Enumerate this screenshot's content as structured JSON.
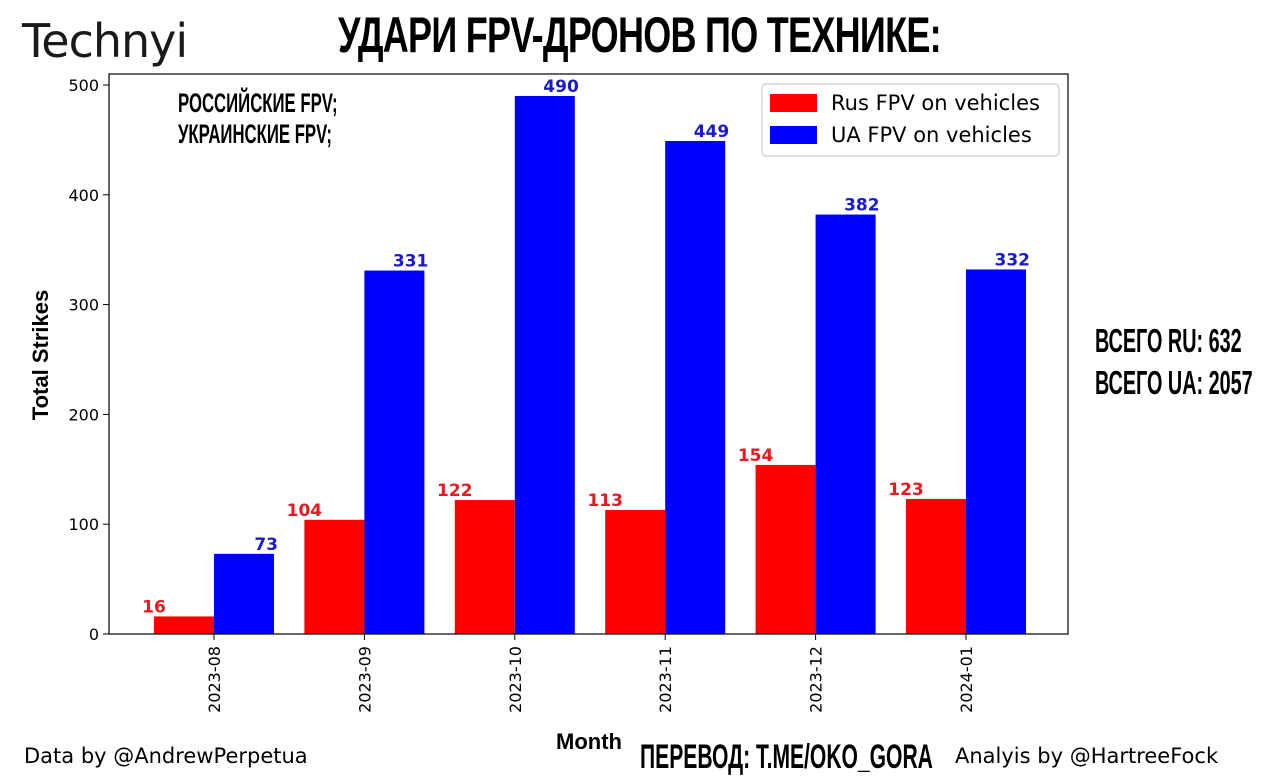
{
  "header": {
    "logo": "Technyi",
    "title": "УДАРИ FPV-ДРОНОВ ПО ТЕХНИКЕ:"
  },
  "annotations": {
    "line1": "РОССИЙСКИЕ FPV;",
    "line2": "УКРАИНСКИЕ FPV;"
  },
  "totals": {
    "ru": "ВСЕГО RU: 632",
    "ua": "ВСЕГО UA: 2057"
  },
  "footer": {
    "data_by": "Data by @AndrewPerpetua",
    "translation": "ПЕРЕВОД: T.ME/OKO_GORA",
    "analysis_by": "Analyis by @HartreeFock"
  },
  "colors": {
    "ru": "#ff0000",
    "ua": "#0000ff",
    "ru_label": "#e8191f",
    "ua_label": "#1a1acc"
  },
  "chart_data": {
    "type": "bar",
    "xlabel": "Month",
    "ylabel": "Total Strikes",
    "ylim": [
      0,
      510
    ],
    "yticks": [
      0,
      100,
      200,
      300,
      400,
      500
    ],
    "categories": [
      "2023-08",
      "2023-09",
      "2023-10",
      "2023-11",
      "2023-12",
      "2024-01"
    ],
    "series": [
      {
        "name": "Rus FPV on vehicles",
        "values": [
          16,
          104,
          122,
          113,
          154,
          123
        ]
      },
      {
        "name": "UA FPV on vehicles",
        "values": [
          73,
          331,
          490,
          449,
          382,
          332
        ]
      }
    ],
    "legend": "top-right",
    "grid": false
  }
}
